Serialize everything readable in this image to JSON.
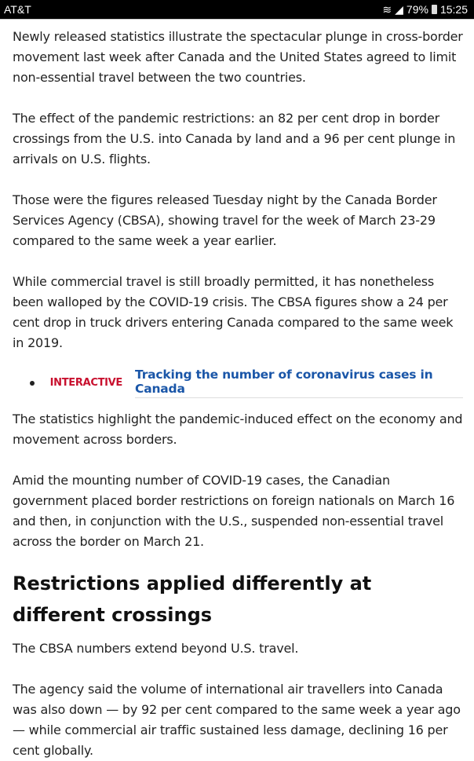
{
  "status_bar": {
    "carrier": "AT&T",
    "battery": "79%",
    "time": "15:25"
  },
  "article": {
    "paragraphs_top": [
      "Newly released statistics illustrate the spectacular plunge in cross-border movement last week after Canada and the United States agreed to limit non-essential travel between the two countries.",
      "The effect of the pandemic restrictions: an 82 per cent drop in border crossings from the U.S. into Canada by land and a 96 per cent plunge in arrivals on U.S. flights.",
      "Those were the figures released Tuesday night by the Canada Border Services Agency (CBSA), showing travel for the week of March 23-29 compared to the same week a year earlier.",
      "While commercial travel is still broadly permitted, it has nonetheless been walloped by the COVID-19 crisis. The CBSA figures show a 24 per cent drop in truck drivers entering Canada compared to the same week in 2019."
    ],
    "related": {
      "tag": "INTERACTIVE",
      "link": "Tracking the number of coronavirus cases in Canada"
    },
    "paragraphs_mid": [
      "The statistics highlight the pandemic-induced effect on the economy and movement across borders.",
      "Amid the mounting number of COVID-19 cases, the Canadian government placed border restrictions on foreign nationals on March 16 and then, in conjunction with the U.S., suspended non-essential travel across the border on March 21."
    ],
    "heading": "Restrictions applied differently at different crossings",
    "paragraphs_bottom": [
      "The CBSA numbers extend beyond U.S. travel.",
      "The agency said the volume of international air travellers into Canada was also down — by 92 per cent compared to the same week a year ago — while commercial air traffic sustained less damage, declining 16 per cent globally."
    ]
  }
}
